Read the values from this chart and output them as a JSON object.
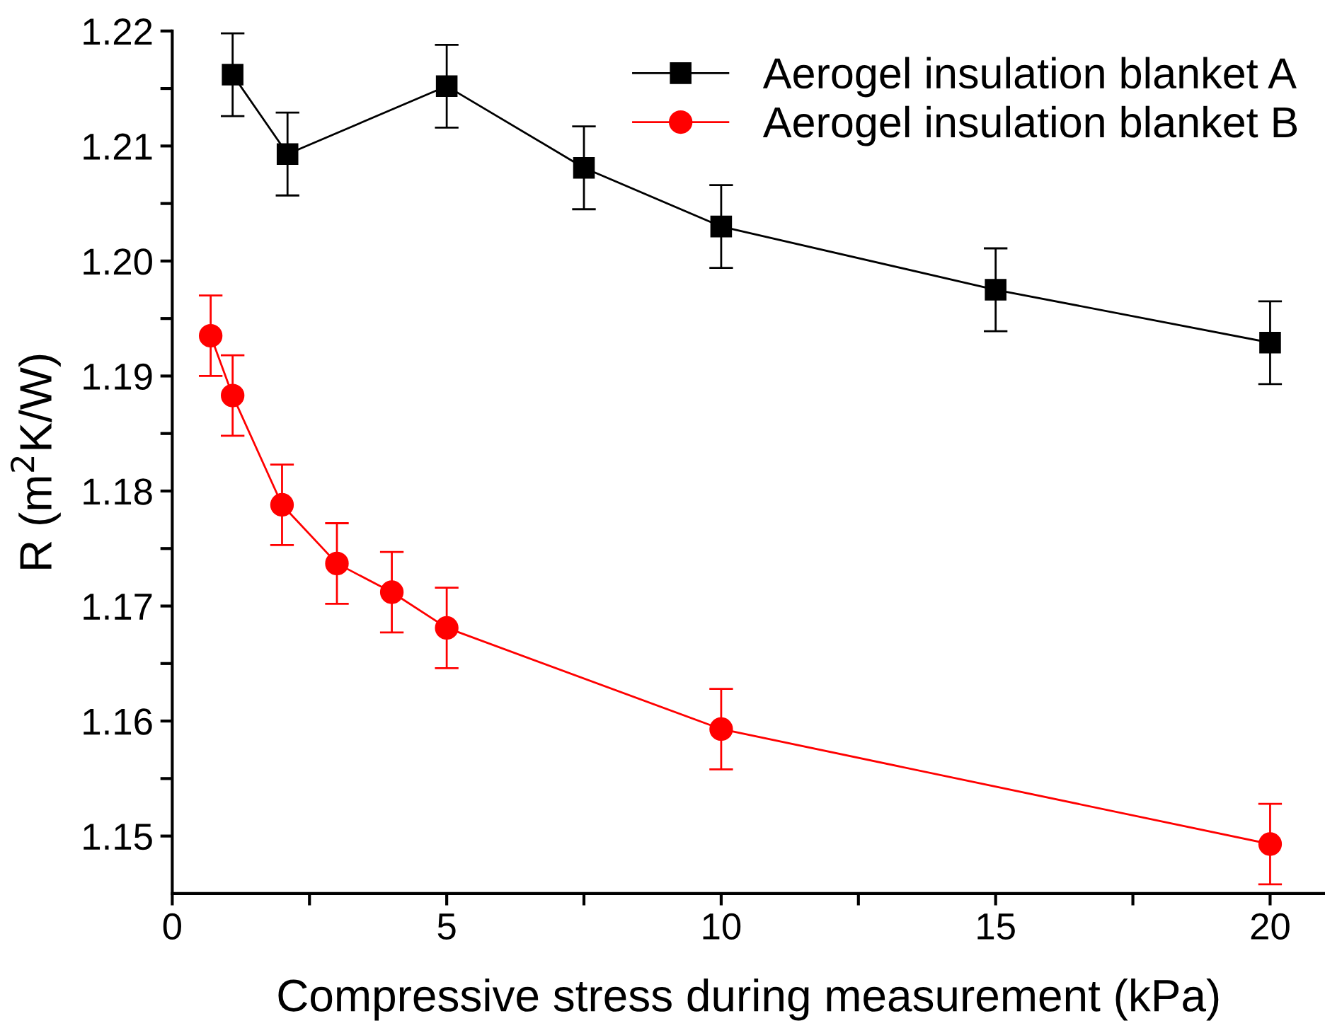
{
  "chart_data": {
    "type": "line",
    "xlabel": "Compressive stress during measurement (kPa)",
    "ylabel": "R (m$^{2}$K/W)",
    "xlim": [
      0,
      21
    ],
    "ylim": [
      1.145,
      1.22
    ],
    "xticks": [
      0,
      {
        "value": 2.5,
        "label": null
      },
      5,
      {
        "value": 7.5,
        "label": null
      },
      10,
      {
        "value": 12.5,
        "label": null
      },
      15,
      {
        "value": 17.5,
        "label": null
      },
      20
    ],
    "yticks": [
      1.15,
      {
        "value": 1.155,
        "label": null
      },
      1.16,
      {
        "value": 1.165,
        "label": null
      },
      1.17,
      {
        "value": 1.175,
        "label": null
      },
      1.18,
      {
        "value": 1.185,
        "label": null
      },
      1.19,
      {
        "value": 1.195,
        "label": null
      },
      {
        "value": 1.2,
        "label": "1.20"
      },
      {
        "value": 1.205,
        "label": null
      },
      1.21,
      {
        "value": 1.215,
        "label": null
      },
      1.22
    ],
    "grid": false,
    "legend": "top right",
    "series": [
      {
        "name": "Aerogel insulation blanket A",
        "color": "#000000",
        "marker": "square",
        "x": [
          1.1,
          2.1,
          5,
          7.5,
          10,
          15,
          20
        ],
        "values": [
          1.2162,
          1.2093,
          1.2152,
          1.2081,
          1.203,
          1.1975,
          1.1929
        ],
        "errors": [
          0.0036,
          0.0036,
          0.0036,
          0.0036,
          0.0036,
          0.0036,
          0.0036
        ]
      },
      {
        "name": "Aerogel insulation blanket B",
        "color": "#ff0000",
        "marker": "circle",
        "x": [
          0.7,
          1.1,
          2,
          3,
          4,
          5,
          10,
          20
        ],
        "values": [
          1.1935,
          1.1883,
          1.1788,
          1.1737,
          1.1712,
          1.1681,
          1.1593,
          1.1493
        ],
        "errors": [
          0.0035,
          0.0035,
          0.0035,
          0.0035,
          0.0035,
          0.0035,
          0.0035,
          0.0035
        ]
      }
    ]
  }
}
